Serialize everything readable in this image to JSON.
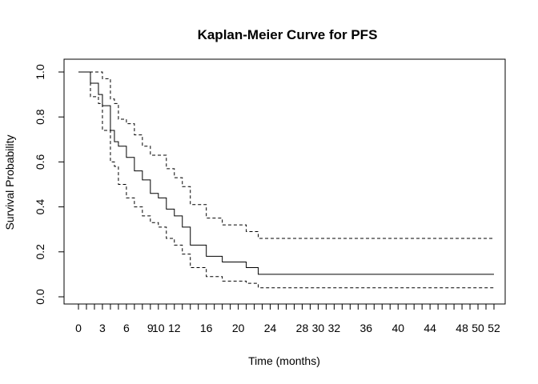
{
  "chart_data": {
    "type": "line",
    "title": "Kaplan-Meier Curve for PFS",
    "xlabel": "Time (months)",
    "ylabel": "Survival Probability",
    "xlim": [
      0,
      52
    ],
    "ylim": [
      0,
      1
    ],
    "grid": false,
    "x_ticks": [
      0,
      1,
      2,
      3,
      4,
      5,
      6,
      7,
      8,
      9,
      10,
      11,
      12,
      13,
      14,
      15,
      16,
      17,
      18,
      19,
      20,
      21,
      22,
      23,
      24,
      25,
      26,
      27,
      28,
      29,
      30,
      31,
      32,
      33,
      34,
      35,
      36,
      37,
      38,
      39,
      40,
      41,
      42,
      43,
      44,
      45,
      46,
      47,
      48,
      49,
      50,
      51,
      52
    ],
    "x_tick_labels": [
      {
        "x": 0,
        "label": "0"
      },
      {
        "x": 3,
        "label": "3"
      },
      {
        "x": 6,
        "label": "6"
      },
      {
        "x": 9,
        "label": "9"
      },
      {
        "x": 10,
        "label": "10"
      },
      {
        "x": 12,
        "label": "12"
      },
      {
        "x": 16,
        "label": "16"
      },
      {
        "x": 20,
        "label": "20"
      },
      {
        "x": 24,
        "label": "24"
      },
      {
        "x": 28,
        "label": "28"
      },
      {
        "x": 30,
        "label": "30"
      },
      {
        "x": 32,
        "label": "32"
      },
      {
        "x": 36,
        "label": "36"
      },
      {
        "x": 40,
        "label": "40"
      },
      {
        "x": 44,
        "label": "44"
      },
      {
        "x": 48,
        "label": "48"
      },
      {
        "x": 50,
        "label": "50"
      },
      {
        "x": 52,
        "label": "52"
      }
    ],
    "y_tick_labels": [
      {
        "y": 0.0,
        "label": "0.0"
      },
      {
        "y": 0.2,
        "label": "0.2"
      },
      {
        "y": 0.4,
        "label": "0.4"
      },
      {
        "y": 0.6,
        "label": "0.6"
      },
      {
        "y": 0.8,
        "label": "0.8"
      },
      {
        "y": 1.0,
        "label": "1.0"
      }
    ],
    "series": [
      {
        "style": "solid",
        "x": [
          0,
          1.5,
          2.5,
          3,
          4,
          4.5,
          5,
          6,
          7,
          8,
          9,
          10,
          11,
          12,
          13,
          14,
          16,
          18,
          21,
          22.5,
          52
        ],
        "y": [
          1.0,
          0.95,
          0.9,
          0.85,
          0.74,
          0.69,
          0.67,
          0.62,
          0.56,
          0.52,
          0.46,
          0.44,
          0.39,
          0.36,
          0.31,
          0.23,
          0.18,
          0.155,
          0.13,
          0.1,
          0.1
        ]
      },
      {
        "style": "dashed",
        "x": [
          0,
          1,
          2,
          3,
          4,
          4.5,
          5,
          6,
          7,
          8,
          9,
          10,
          11,
          12,
          13,
          14,
          16,
          18,
          21,
          22.5,
          52
        ],
        "y": [
          1.0,
          1.0,
          1.0,
          0.97,
          0.88,
          0.86,
          0.79,
          0.77,
          0.72,
          0.67,
          0.63,
          0.63,
          0.57,
          0.53,
          0.49,
          0.41,
          0.35,
          0.32,
          0.29,
          0.26,
          0.26
        ]
      },
      {
        "style": "dashed",
        "x": [
          0,
          1.5,
          2.5,
          3,
          4,
          4.5,
          5,
          6,
          7,
          8,
          9,
          10,
          11,
          12,
          13,
          14,
          16,
          18,
          21,
          22.5,
          52
        ],
        "y": [
          1.0,
          0.89,
          0.86,
          0.74,
          0.6,
          0.58,
          0.5,
          0.44,
          0.4,
          0.36,
          0.33,
          0.31,
          0.26,
          0.23,
          0.19,
          0.13,
          0.09,
          0.07,
          0.06,
          0.04,
          0.04
        ]
      }
    ]
  }
}
